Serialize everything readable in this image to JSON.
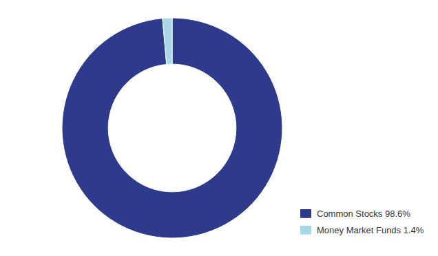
{
  "chart_data": {
    "type": "donut",
    "categories": [
      "Common Stocks 98.6%",
      "Money Market Funds 1.4%"
    ],
    "values": [
      98.6,
      1.4
    ],
    "colors": [
      "#2e3a8c",
      "#a8d8e8"
    ],
    "legend": "bottom-right"
  }
}
